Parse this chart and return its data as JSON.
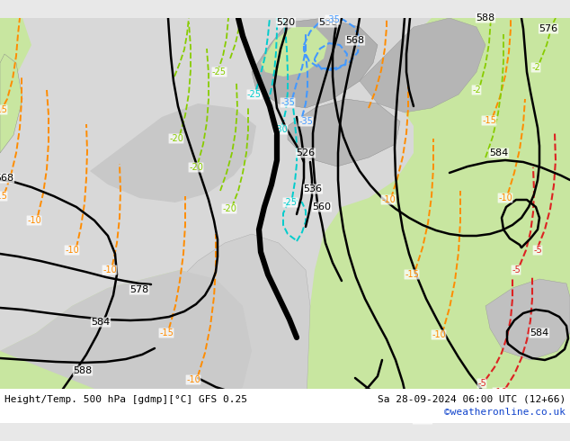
{
  "title_left": "Height/Temp. 500 hPa [gdmp][°C] GFS 0.25",
  "title_right": "Sa 28-09-2024 06:00 UTC (12+66)",
  "credit": "©weatheronline.co.uk",
  "bg_green": "#c8e6a0",
  "bg_gray": "#a8a8a8",
  "bg_light_gray": "#d0d0d0",
  "bg_white_sea": "#e8e8e8",
  "orange": "#ff8c00",
  "green_temp": "#88cc00",
  "cyan_temp": "#00cccc",
  "blue_temp": "#4499ff",
  "red_temp": "#dd2222",
  "black": "#000000",
  "credit_color": "#1144cc",
  "title_fs": 8,
  "credit_fs": 8,
  "label_fs": 8
}
